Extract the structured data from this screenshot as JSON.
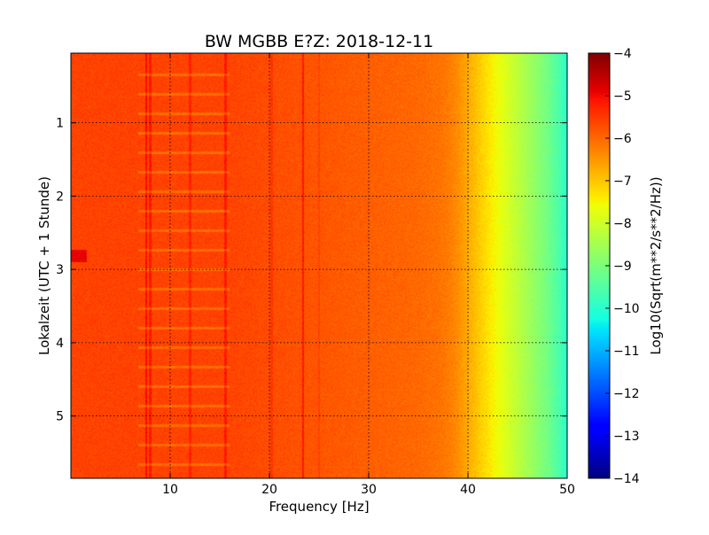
{
  "chart_data": {
    "type": "heatmap",
    "title": "BW MGBB E?Z: 2018-12-11",
    "xlabel": "Frequency [Hz]",
    "ylabel": "Lokalzeit (UTC + 1 Stunde)",
    "xlim": [
      0,
      50
    ],
    "ylim": [
      5.85,
      0.05
    ],
    "y_inverted": true,
    "grid": true,
    "x_ticks": [
      10,
      20,
      30,
      40,
      50
    ],
    "y_ticks": [
      1,
      2,
      3,
      4,
      5
    ],
    "colorbar": {
      "label": "Log10(Sqrt(m**2/s**2/Hz))",
      "colormap": "jet",
      "range": [
        -14,
        -4
      ],
      "ticks": [
        -4,
        -5,
        -6,
        -7,
        -8,
        -9,
        -10,
        -11,
        -12,
        -13,
        -14
      ]
    },
    "frequency_profile": {
      "x": [
        0,
        5,
        10,
        15,
        20,
        25,
        30,
        35,
        37,
        38,
        39,
        40,
        41,
        42,
        43,
        44,
        45,
        46,
        47,
        48,
        49,
        50
      ],
      "values": [
        -5.6,
        -5.6,
        -5.6,
        -5.6,
        -5.7,
        -5.8,
        -5.9,
        -6.0,
        -6.1,
        -6.2,
        -6.4,
        -6.7,
        -7.0,
        -7.3,
        -7.6,
        -7.9,
        -8.2,
        -8.5,
        -8.8,
        -9.1,
        -9.5,
        -10.0
      ]
    },
    "persistent_lines_hz": [
      7.6,
      8.0,
      12.0,
      15.6,
      20.2,
      23.4,
      25.0
    ],
    "features": [
      {
        "type": "periodic_band",
        "x_range": [
          6.8,
          16.0
        ],
        "y_start": 0.33,
        "period": 0.266
      },
      {
        "type": "spot",
        "x_range": [
          0.0,
          1.6
        ],
        "y_range": [
          2.73,
          2.9
        ]
      }
    ]
  }
}
